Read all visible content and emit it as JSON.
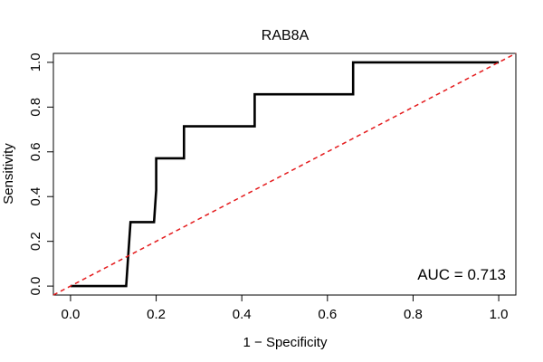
{
  "chart_data": {
    "type": "line",
    "title": "RAB8A",
    "xlabel": "1 − Specificity",
    "ylabel": "Sensitivity",
    "xlim": [
      -0.04,
      1.04
    ],
    "ylim": [
      -0.04,
      1.04
    ],
    "x_ticks": [
      "0.0",
      "0.2",
      "0.4",
      "0.6",
      "0.8",
      "1.0"
    ],
    "y_ticks": [
      "0.0",
      "0.2",
      "0.4",
      "0.6",
      "0.8",
      "1.0"
    ],
    "grid": false,
    "annotation": "AUC = 0.713",
    "series": [
      {
        "style": "solid",
        "color": "#000000",
        "x": [
          0.0,
          0.13,
          0.14,
          0.195,
          0.2,
          0.2,
          0.265,
          0.265,
          0.43,
          0.43,
          0.66,
          0.66,
          1.0
        ],
        "y": [
          0.0,
          0.0,
          0.286,
          0.286,
          0.429,
          0.571,
          0.571,
          0.714,
          0.714,
          0.857,
          0.857,
          1.0,
          1.0
        ]
      },
      {
        "style": "dashed",
        "color": "#e41a1c",
        "x": [
          -0.04,
          1.04
        ],
        "y": [
          -0.04,
          1.04
        ]
      }
    ]
  }
}
